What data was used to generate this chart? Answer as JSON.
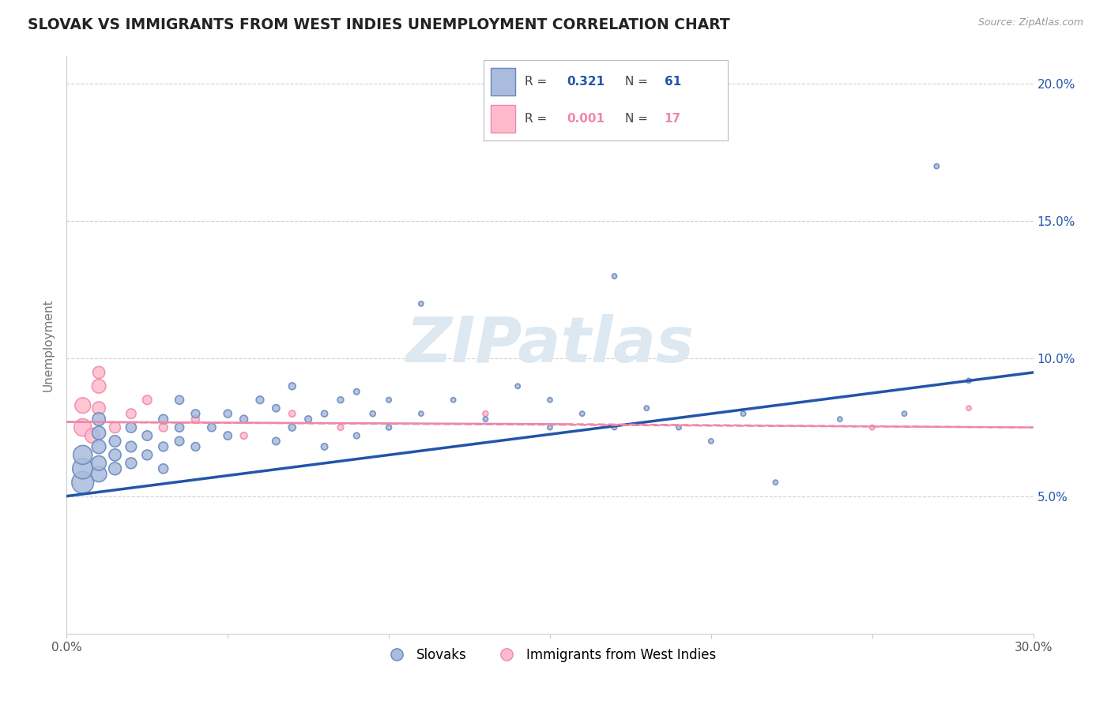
{
  "title": "SLOVAK VS IMMIGRANTS FROM WEST INDIES UNEMPLOYMENT CORRELATION CHART",
  "source": "Source: ZipAtlas.com",
  "ylabel": "Unemployment",
  "xlim": [
    0.0,
    0.3
  ],
  "ylim": [
    0.0,
    0.21
  ],
  "x_ticks": [
    0.0,
    0.05,
    0.1,
    0.15,
    0.2,
    0.25,
    0.3
  ],
  "x_tick_labels": [
    "0.0%",
    "",
    "",
    "",
    "",
    "",
    "30.0%"
  ],
  "y_ticks": [
    0.05,
    0.1,
    0.15,
    0.2
  ],
  "y_tick_labels": [
    "5.0%",
    "10.0%",
    "15.0%",
    "20.0%"
  ],
  "legend_slovak": "Slovaks",
  "legend_west_indies": "Immigrants from West Indies",
  "R_slovak": "0.321",
  "N_slovak": "61",
  "R_west_indies": "0.001",
  "N_west_indies": "17",
  "background_color": "#ffffff",
  "grid_color": "#cccccc",
  "slovak_color": "#aabbdd",
  "slovak_edge_color": "#6688bb",
  "west_indies_color": "#ffbbcc",
  "west_indies_edge_color": "#ee88aa",
  "slovak_line_color": "#2255aa",
  "west_indies_line_color": "#ee6688",
  "watermark_color": "#dde8f0",
  "slovak_scatter_x": [
    0.005,
    0.005,
    0.005,
    0.01,
    0.01,
    0.01,
    0.01,
    0.01,
    0.015,
    0.015,
    0.015,
    0.02,
    0.02,
    0.02,
    0.025,
    0.025,
    0.03,
    0.03,
    0.03,
    0.035,
    0.035,
    0.035,
    0.04,
    0.04,
    0.045,
    0.05,
    0.05,
    0.055,
    0.06,
    0.065,
    0.065,
    0.07,
    0.07,
    0.075,
    0.08,
    0.08,
    0.085,
    0.09,
    0.09,
    0.095,
    0.1,
    0.1,
    0.11,
    0.11,
    0.12,
    0.13,
    0.14,
    0.15,
    0.15,
    0.16,
    0.17,
    0.17,
    0.18,
    0.19,
    0.2,
    0.21,
    0.22,
    0.24,
    0.26,
    0.27,
    0.28
  ],
  "slovak_scatter_y": [
    0.055,
    0.06,
    0.065,
    0.058,
    0.062,
    0.068,
    0.073,
    0.078,
    0.06,
    0.065,
    0.07,
    0.062,
    0.068,
    0.075,
    0.065,
    0.072,
    0.06,
    0.068,
    0.078,
    0.07,
    0.075,
    0.085,
    0.068,
    0.08,
    0.075,
    0.072,
    0.08,
    0.078,
    0.085,
    0.07,
    0.082,
    0.075,
    0.09,
    0.078,
    0.068,
    0.08,
    0.085,
    0.072,
    0.088,
    0.08,
    0.075,
    0.085,
    0.08,
    0.12,
    0.085,
    0.078,
    0.09,
    0.075,
    0.085,
    0.08,
    0.075,
    0.13,
    0.082,
    0.075,
    0.07,
    0.08,
    0.055,
    0.078,
    0.08,
    0.17,
    0.092
  ],
  "slovak_scatter_size": [
    400,
    350,
    300,
    200,
    180,
    160,
    150,
    140,
    130,
    120,
    110,
    100,
    95,
    90,
    85,
    80,
    75,
    72,
    70,
    68,
    65,
    62,
    60,
    58,
    56,
    54,
    52,
    50,
    48,
    46,
    44,
    42,
    40,
    38,
    36,
    34,
    32,
    30,
    28,
    26,
    24,
    22,
    20,
    20,
    20,
    20,
    20,
    20,
    20,
    20,
    20,
    20,
    20,
    20,
    20,
    20,
    20,
    20,
    20,
    20,
    20
  ],
  "west_indies_scatter_x": [
    0.005,
    0.005,
    0.008,
    0.01,
    0.01,
    0.01,
    0.015,
    0.02,
    0.025,
    0.03,
    0.04,
    0.055,
    0.07,
    0.085,
    0.13,
    0.25,
    0.28
  ],
  "west_indies_scatter_y": [
    0.075,
    0.083,
    0.072,
    0.09,
    0.082,
    0.095,
    0.075,
    0.08,
    0.085,
    0.075,
    0.078,
    0.072,
    0.08,
    0.075,
    0.08,
    0.075,
    0.082
  ],
  "west_indies_scatter_size": [
    250,
    200,
    180,
    160,
    140,
    120,
    100,
    80,
    70,
    60,
    50,
    40,
    35,
    30,
    25,
    20,
    20
  ]
}
